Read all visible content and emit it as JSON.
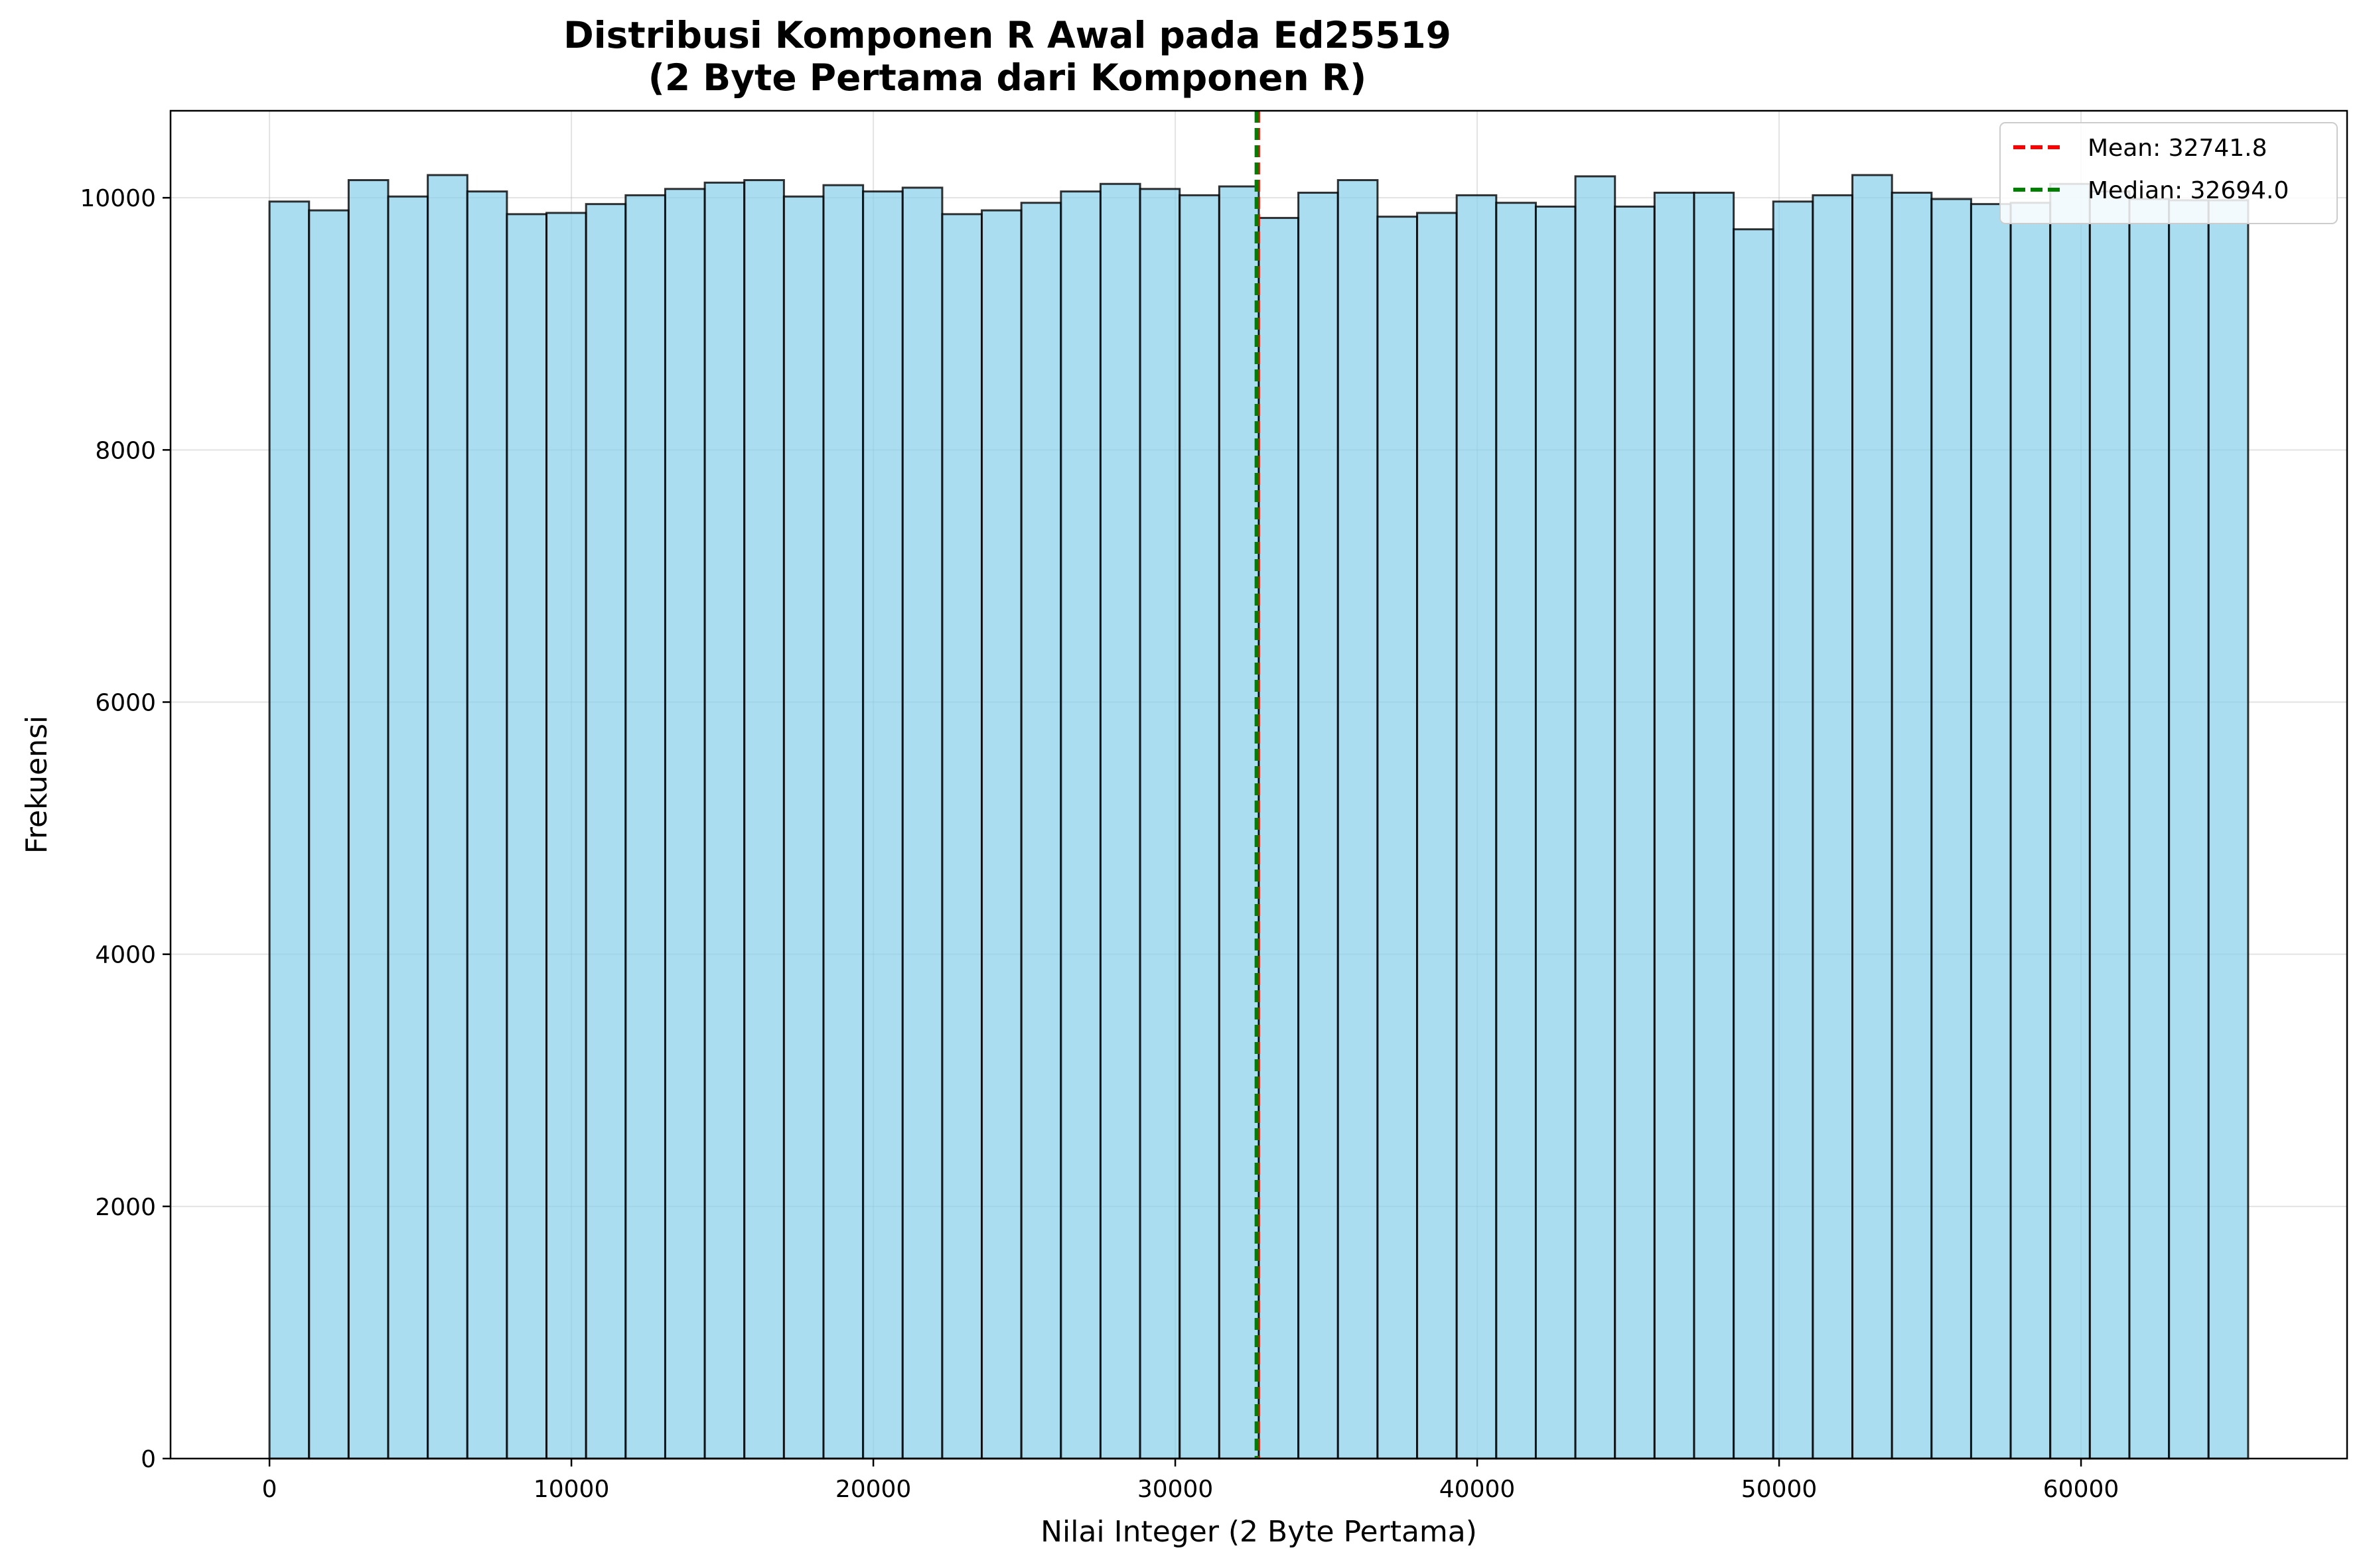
{
  "chart_data": {
    "type": "bar",
    "subtype": "histogram",
    "title": "Distribusi Komponen R Awal pada Ed25519",
    "subtitle": "(2 Byte Pertama dari Komponen R)",
    "xlabel": "Nilai Integer (2 Byte Pertama)",
    "ylabel": "Frekuensi",
    "xlim": [
      -3277,
      68812
    ],
    "ylim": [
      0,
      10690
    ],
    "xticks": [
      0,
      10000,
      20000,
      30000,
      40000,
      50000,
      60000
    ],
    "yticks": [
      0,
      2000,
      4000,
      6000,
      8000,
      10000
    ],
    "grid": true,
    "bin_range": [
      0,
      65535
    ],
    "bin_count": 50,
    "bar_color": "#87CEEB",
    "bar_edge_color": "#000000",
    "counts": [
      9970,
      9900,
      10140,
      10010,
      10180,
      10050,
      9870,
      9880,
      9950,
      10020,
      10070,
      10120,
      10140,
      10010,
      10100,
      10050,
      10080,
      9870,
      9900,
      9960,
      10050,
      10110,
      10070,
      10020,
      10090,
      9840,
      10040,
      10140,
      9850,
      9880,
      10020,
      9960,
      9930,
      10170,
      9930,
      10040,
      10040,
      9750,
      9970,
      10020,
      10180,
      10040,
      9990,
      9950,
      9960,
      10110,
      10050,
      9990,
      9980,
      9980
    ],
    "reference_lines": [
      {
        "name": "Mean: 32741.8",
        "x": 32741.8,
        "color": "#ff0000",
        "style": "dashed"
      },
      {
        "name": "Median: 32694.0",
        "x": 32694.0,
        "color": "#008000",
        "style": "dashed"
      }
    ],
    "legend_position": "top-right"
  }
}
